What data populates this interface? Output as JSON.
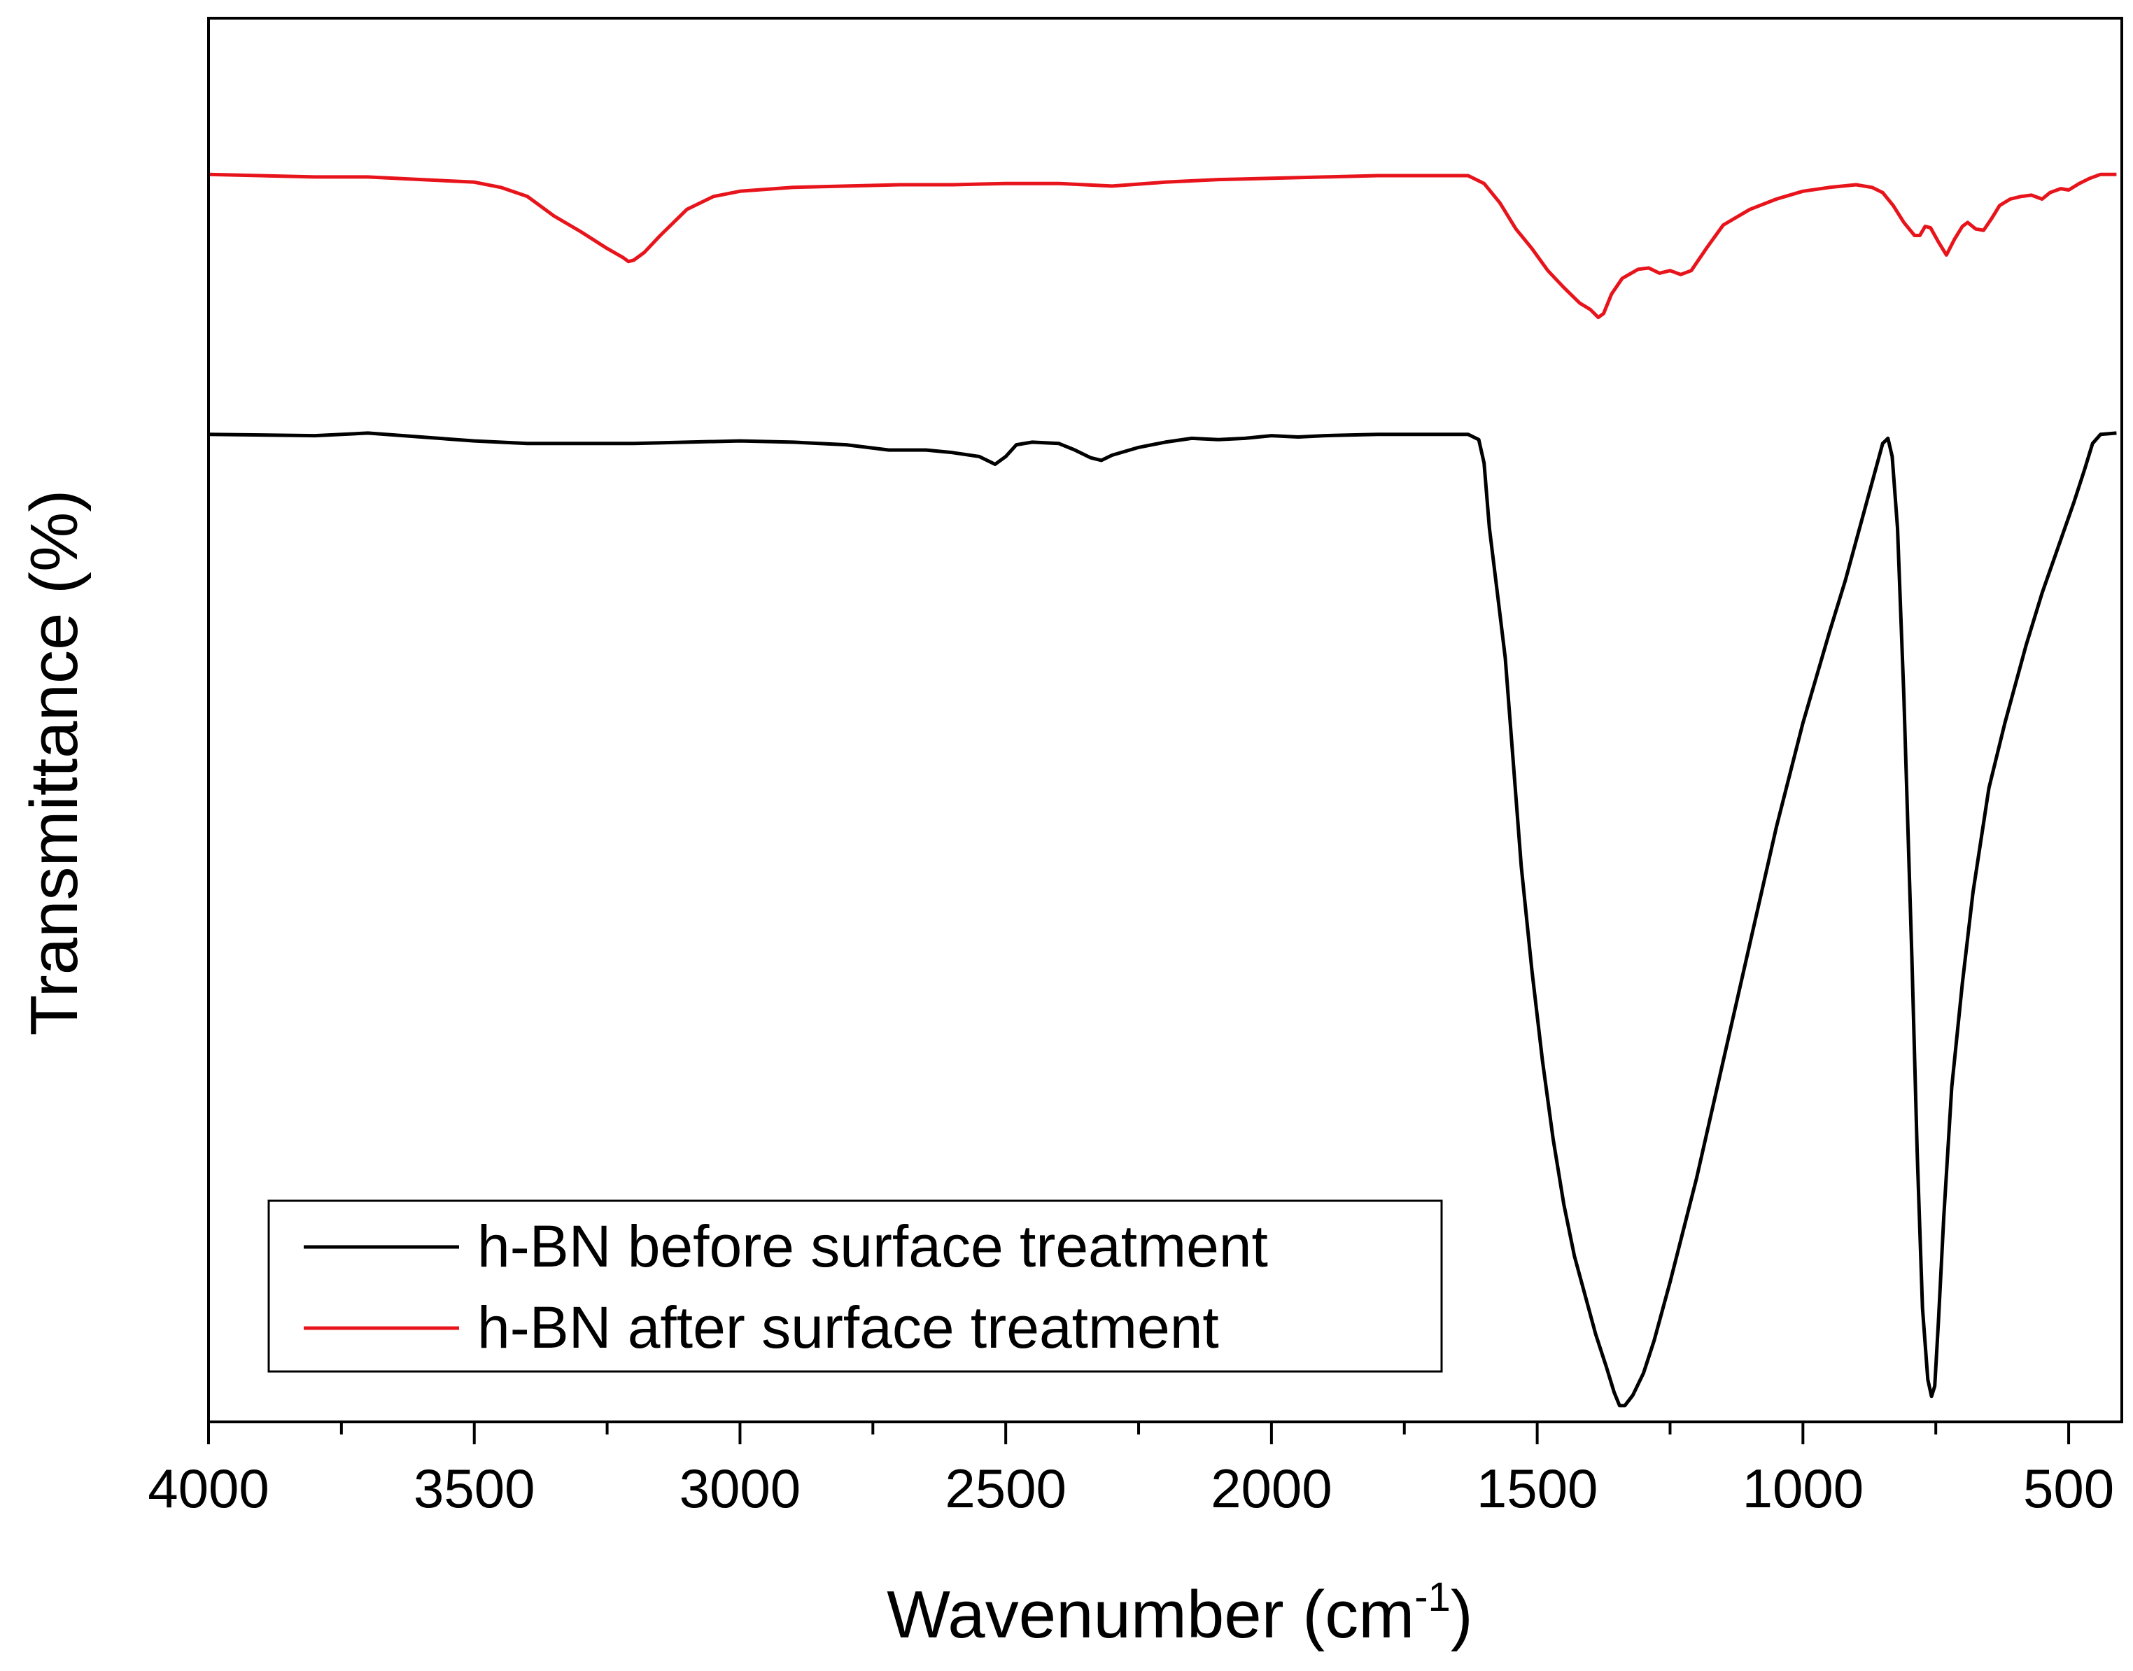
{
  "chart_data": {
    "type": "line",
    "title": "",
    "xlabel": "Wavenumber (cm",
    "xlabel_superscript": "-1",
    "xlabel_suffix": ")",
    "ylabel": "Transmittance (%)",
    "xlim": [
      4000,
      400
    ],
    "ylim": [
      0,
      100
    ],
    "x_tick_labels": [
      "4000",
      "3500",
      "3000",
      "2500",
      "2000",
      "1500",
      "1000",
      "500"
    ],
    "x_major_ticks": [
      4000,
      3500,
      3000,
      2500,
      2000,
      1500,
      1000,
      500
    ],
    "x_minor_ticks": [
      3750,
      3250,
      2750,
      2250,
      1750,
      1250,
      750
    ],
    "grid": false,
    "legend_position": "bottom-left",
    "series": [
      {
        "name": "h-BN before surface treatment",
        "color": "#000000",
        "points": [
          [
            4000,
            75.2
          ],
          [
            3800,
            75.1
          ],
          [
            3700,
            75.3
          ],
          [
            3600,
            75.0
          ],
          [
            3500,
            74.7
          ],
          [
            3400,
            74.5
          ],
          [
            3300,
            74.5
          ],
          [
            3200,
            74.5
          ],
          [
            3100,
            74.6
          ],
          [
            3000,
            74.7
          ],
          [
            2900,
            74.6
          ],
          [
            2800,
            74.4
          ],
          [
            2720,
            74.0
          ],
          [
            2650,
            74.0
          ],
          [
            2600,
            73.8
          ],
          [
            2550,
            73.5
          ],
          [
            2520,
            72.9
          ],
          [
            2500,
            73.5
          ],
          [
            2480,
            74.4
          ],
          [
            2450,
            74.6
          ],
          [
            2400,
            74.5
          ],
          [
            2370,
            74.0
          ],
          [
            2340,
            73.4
          ],
          [
            2320,
            73.2
          ],
          [
            2300,
            73.6
          ],
          [
            2250,
            74.2
          ],
          [
            2200,
            74.6
          ],
          [
            2150,
            74.9
          ],
          [
            2100,
            74.8
          ],
          [
            2050,
            74.9
          ],
          [
            2000,
            75.1
          ],
          [
            1950,
            75.0
          ],
          [
            1900,
            75.1
          ],
          [
            1800,
            75.2
          ],
          [
            1700,
            75.2
          ],
          [
            1630,
            75.2
          ],
          [
            1610,
            74.8
          ],
          [
            1600,
            73.0
          ],
          [
            1590,
            68.0
          ],
          [
            1575,
            63.0
          ],
          [
            1560,
            58.0
          ],
          [
            1545,
            50.0
          ],
          [
            1530,
            42.0
          ],
          [
            1510,
            34.0
          ],
          [
            1490,
            27.0
          ],
          [
            1470,
            21.0
          ],
          [
            1450,
            16.0
          ],
          [
            1430,
            12.0
          ],
          [
            1410,
            9.0
          ],
          [
            1390,
            6.0
          ],
          [
            1370,
            3.5
          ],
          [
            1355,
            1.5
          ],
          [
            1345,
            0.5
          ],
          [
            1335,
            0.5
          ],
          [
            1320,
            1.3
          ],
          [
            1300,
            3.0
          ],
          [
            1280,
            5.5
          ],
          [
            1250,
            10.0
          ],
          [
            1200,
            18.0
          ],
          [
            1150,
            27.0
          ],
          [
            1100,
            36.0
          ],
          [
            1050,
            45.0
          ],
          [
            1000,
            53.0
          ],
          [
            950,
            60.0
          ],
          [
            920,
            64.0
          ],
          [
            900,
            67.0
          ],
          [
            880,
            70.0
          ],
          [
            860,
            73.0
          ],
          [
            850,
            74.5
          ],
          [
            840,
            74.9
          ],
          [
            832,
            73.5
          ],
          [
            822,
            68.0
          ],
          [
            810,
            55.0
          ],
          [
            795,
            35.0
          ],
          [
            785,
            20.0
          ],
          [
            775,
            8.0
          ],
          [
            765,
            2.5
          ],
          [
            758,
            1.2
          ],
          [
            752,
            2.0
          ],
          [
            745,
            7.0
          ],
          [
            735,
            15.0
          ],
          [
            720,
            25.0
          ],
          [
            700,
            33.0
          ],
          [
            680,
            40.0
          ],
          [
            650,
            48.0
          ],
          [
            620,
            53.0
          ],
          [
            600,
            56.0
          ],
          [
            580,
            59.0
          ],
          [
            550,
            63.0
          ],
          [
            520,
            66.5
          ],
          [
            490,
            70.0
          ],
          [
            470,
            72.5
          ],
          [
            455,
            74.5
          ],
          [
            440,
            75.2
          ],
          [
            410,
            75.3
          ]
        ]
      },
      {
        "name": "h-BN after surface treatment",
        "color": "#e8141c",
        "points": [
          [
            4000,
            95.2
          ],
          [
            3800,
            95.0
          ],
          [
            3700,
            95.0
          ],
          [
            3600,
            94.8
          ],
          [
            3500,
            94.6
          ],
          [
            3450,
            94.2
          ],
          [
            3400,
            93.5
          ],
          [
            3350,
            92.0
          ],
          [
            3300,
            90.8
          ],
          [
            3250,
            89.5
          ],
          [
            3220,
            88.8
          ],
          [
            3210,
            88.5
          ],
          [
            3200,
            88.6
          ],
          [
            3180,
            89.2
          ],
          [
            3150,
            90.5
          ],
          [
            3100,
            92.5
          ],
          [
            3050,
            93.5
          ],
          [
            3000,
            93.9
          ],
          [
            2900,
            94.2
          ],
          [
            2800,
            94.3
          ],
          [
            2700,
            94.4
          ],
          [
            2600,
            94.4
          ],
          [
            2500,
            94.5
          ],
          [
            2400,
            94.5
          ],
          [
            2300,
            94.3
          ],
          [
            2200,
            94.6
          ],
          [
            2100,
            94.8
          ],
          [
            2000,
            94.9
          ],
          [
            1900,
            95.0
          ],
          [
            1800,
            95.1
          ],
          [
            1700,
            95.1
          ],
          [
            1630,
            95.1
          ],
          [
            1600,
            94.5
          ],
          [
            1570,
            93.0
          ],
          [
            1540,
            91.0
          ],
          [
            1510,
            89.5
          ],
          [
            1480,
            87.8
          ],
          [
            1450,
            86.5
          ],
          [
            1420,
            85.3
          ],
          [
            1400,
            84.8
          ],
          [
            1385,
            84.2
          ],
          [
            1375,
            84.5
          ],
          [
            1360,
            86.0
          ],
          [
            1340,
            87.2
          ],
          [
            1310,
            87.9
          ],
          [
            1290,
            88.0
          ],
          [
            1270,
            87.6
          ],
          [
            1250,
            87.8
          ],
          [
            1230,
            87.5
          ],
          [
            1210,
            87.8
          ],
          [
            1200,
            88.4
          ],
          [
            1180,
            89.6
          ],
          [
            1150,
            91.3
          ],
          [
            1100,
            92.5
          ],
          [
            1050,
            93.3
          ],
          [
            1000,
            93.9
          ],
          [
            950,
            94.2
          ],
          [
            900,
            94.4
          ],
          [
            870,
            94.2
          ],
          [
            850,
            93.8
          ],
          [
            830,
            92.8
          ],
          [
            810,
            91.5
          ],
          [
            790,
            90.5
          ],
          [
            780,
            90.5
          ],
          [
            770,
            91.2
          ],
          [
            760,
            91.1
          ],
          [
            745,
            90.0
          ],
          [
            730,
            89.0
          ],
          [
            715,
            90.2
          ],
          [
            700,
            91.2
          ],
          [
            690,
            91.5
          ],
          [
            675,
            91.0
          ],
          [
            660,
            90.9
          ],
          [
            645,
            91.8
          ],
          [
            630,
            92.8
          ],
          [
            610,
            93.3
          ],
          [
            590,
            93.5
          ],
          [
            570,
            93.6
          ],
          [
            550,
            93.3
          ],
          [
            535,
            93.8
          ],
          [
            515,
            94.1
          ],
          [
            500,
            94.0
          ],
          [
            480,
            94.5
          ],
          [
            460,
            94.9
          ],
          [
            440,
            95.2
          ],
          [
            410,
            95.2
          ]
        ]
      }
    ]
  }
}
